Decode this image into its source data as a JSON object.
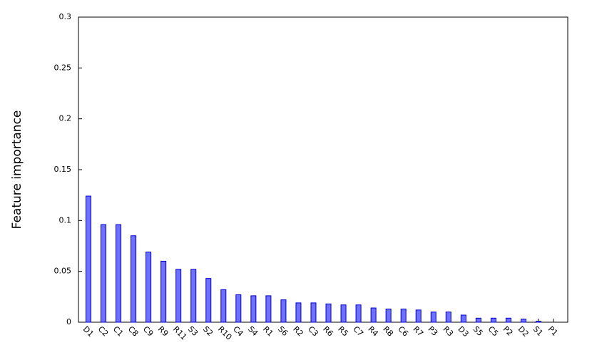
{
  "chart_data": {
    "type": "bar",
    "y_label": "Feature importance",
    "categories": [
      "D1",
      "C2",
      "C1",
      "C8",
      "C9",
      "R9",
      "R11",
      "S3",
      "S2",
      "R10",
      "C4",
      "S4",
      "R1",
      "S6",
      "R2",
      "C3",
      "R6",
      "R5",
      "C7",
      "R4",
      "R8",
      "C6",
      "R7",
      "P3",
      "R3",
      "D3",
      "S5",
      "C5",
      "P2",
      "D2",
      "S1",
      "P1"
    ],
    "values": [
      0.124,
      0.096,
      0.096,
      0.085,
      0.069,
      0.06,
      0.052,
      0.052,
      0.043,
      0.032,
      0.027,
      0.026,
      0.026,
      0.022,
      0.019,
      0.019,
      0.018,
      0.017,
      0.017,
      0.014,
      0.013,
      0.013,
      0.012,
      0.01,
      0.01,
      0.007,
      0.004,
      0.004,
      0.004,
      0.003,
      0.001,
      0.0
    ],
    "color": "#7070ff",
    "edgecolor": "#0000cc",
    "ylim": [
      0,
      0.3
    ],
    "yticks": [
      0,
      0.05,
      0.1,
      0.15,
      0.2,
      0.25,
      0.3
    ],
    "grid": false
  }
}
